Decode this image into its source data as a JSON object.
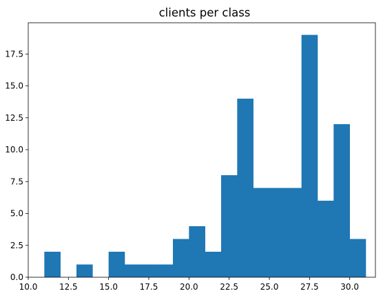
{
  "chart_data": {
    "type": "bar",
    "title": "clients per class",
    "xlabel": "",
    "ylabel": "",
    "xlim": [
      10.0,
      31.6
    ],
    "ylim": [
      0,
      19.95
    ],
    "grid": false,
    "bin_edges": [
      11,
      12,
      13,
      14,
      15,
      16,
      17,
      18,
      19,
      20,
      21,
      22,
      23,
      24,
      25,
      26,
      27,
      28,
      29,
      30,
      31
    ],
    "values": [
      2,
      0,
      1,
      0,
      2,
      1,
      1,
      1,
      3,
      4,
      2,
      8,
      14,
      7,
      7,
      7,
      19,
      6,
      12,
      3
    ],
    "x_ticks": [
      10.0,
      12.5,
      15.0,
      17.5,
      20.0,
      22.5,
      25.0,
      27.5,
      30.0
    ],
    "x_tick_labels": [
      "10.0",
      "12.5",
      "15.0",
      "17.5",
      "20.0",
      "22.5",
      "25.0",
      "27.5",
      "30.0"
    ],
    "y_ticks": [
      0.0,
      2.5,
      5.0,
      7.5,
      10.0,
      12.5,
      15.0,
      17.5
    ],
    "y_tick_labels": [
      "0.0",
      "2.5",
      "5.0",
      "7.5",
      "10.0",
      "12.5",
      "15.0",
      "17.5"
    ],
    "bar_color": "#1f77b4"
  }
}
